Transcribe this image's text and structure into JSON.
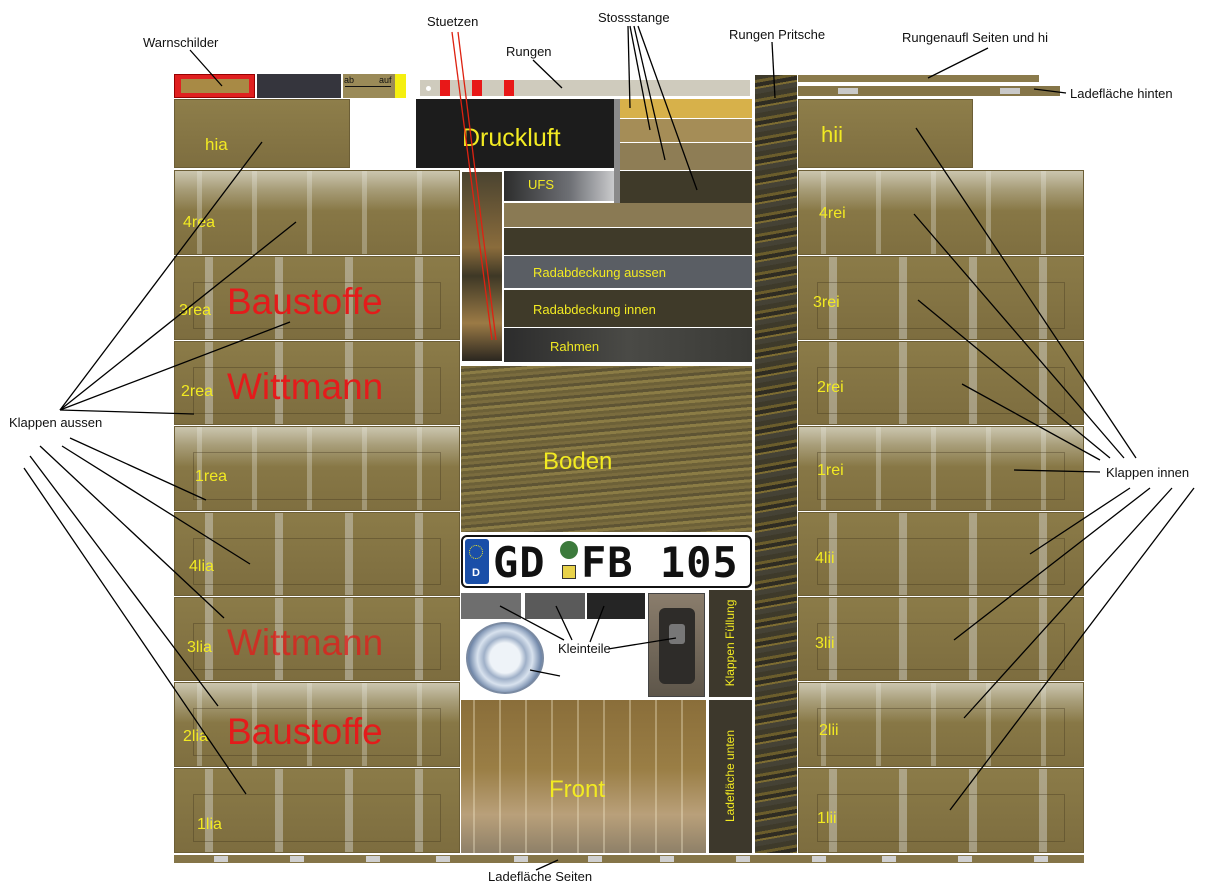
{
  "callouts": {
    "warnschilder": "Warnschilder",
    "stuetzen": "Stuetzen",
    "stossstange": "Stossstange",
    "rungen": "Rungen",
    "rungen_pritsche": "Rungen Pritsche",
    "rungenaufl": "Rungenaufl Seiten und hi",
    "ladeflaeche_hinten": "Ladefläche hinten",
    "klappen_aussen": "Klappen aussen",
    "klappen_innen": "Klappen innen",
    "kleinteile": "Kleinteile",
    "ladeflaeche_seiten": "Ladefläche Seiten"
  },
  "warn_strip": {
    "ab": "ab",
    "auf": "auf"
  },
  "left_panels": {
    "hia": "hia",
    "p4rea": "4rea",
    "p3rea": "3rea",
    "p2rea": "2rea",
    "p1rea": "1rea",
    "p4lia": "4lia",
    "p3lia": "3lia",
    "p2lia": "2lia",
    "p1lia": "1lia"
  },
  "right_panels": {
    "hii": "hii",
    "p4rei": "4rei",
    "p3rei": "3rei",
    "p2rei": "2rei",
    "p1rei": "1rei",
    "p4lii": "4lii",
    "p3lii": "3lii",
    "p2lii": "2lii",
    "p1lii": "1lii"
  },
  "decals": {
    "baustoffe_1": "Baustoffe",
    "wittmann_1": "Wittmann",
    "wittmann_2": "Wittmann",
    "baustoffe_2": "Baustoffe"
  },
  "center": {
    "druckluft": "Druckluft",
    "ufs": "UFS",
    "radabdeckung_aussen": "Radabdeckung aussen",
    "radabdeckung_innen": "Radabdeckung innen",
    "rahmen": "Rahmen",
    "boden": "Boden",
    "front": "Front",
    "klappen_fuellung": "Klappen Füllung",
    "ladeflaeche_unten": "Ladefläche unten"
  },
  "plate": {
    "country": "D",
    "text_left": "GD",
    "text_right": "FB 105"
  },
  "colors": {
    "olive": "#8a7a47",
    "label_yellow": "#f2ea22",
    "decal_red": "#e41b1b",
    "plate_blue": "#1a4fa8"
  }
}
